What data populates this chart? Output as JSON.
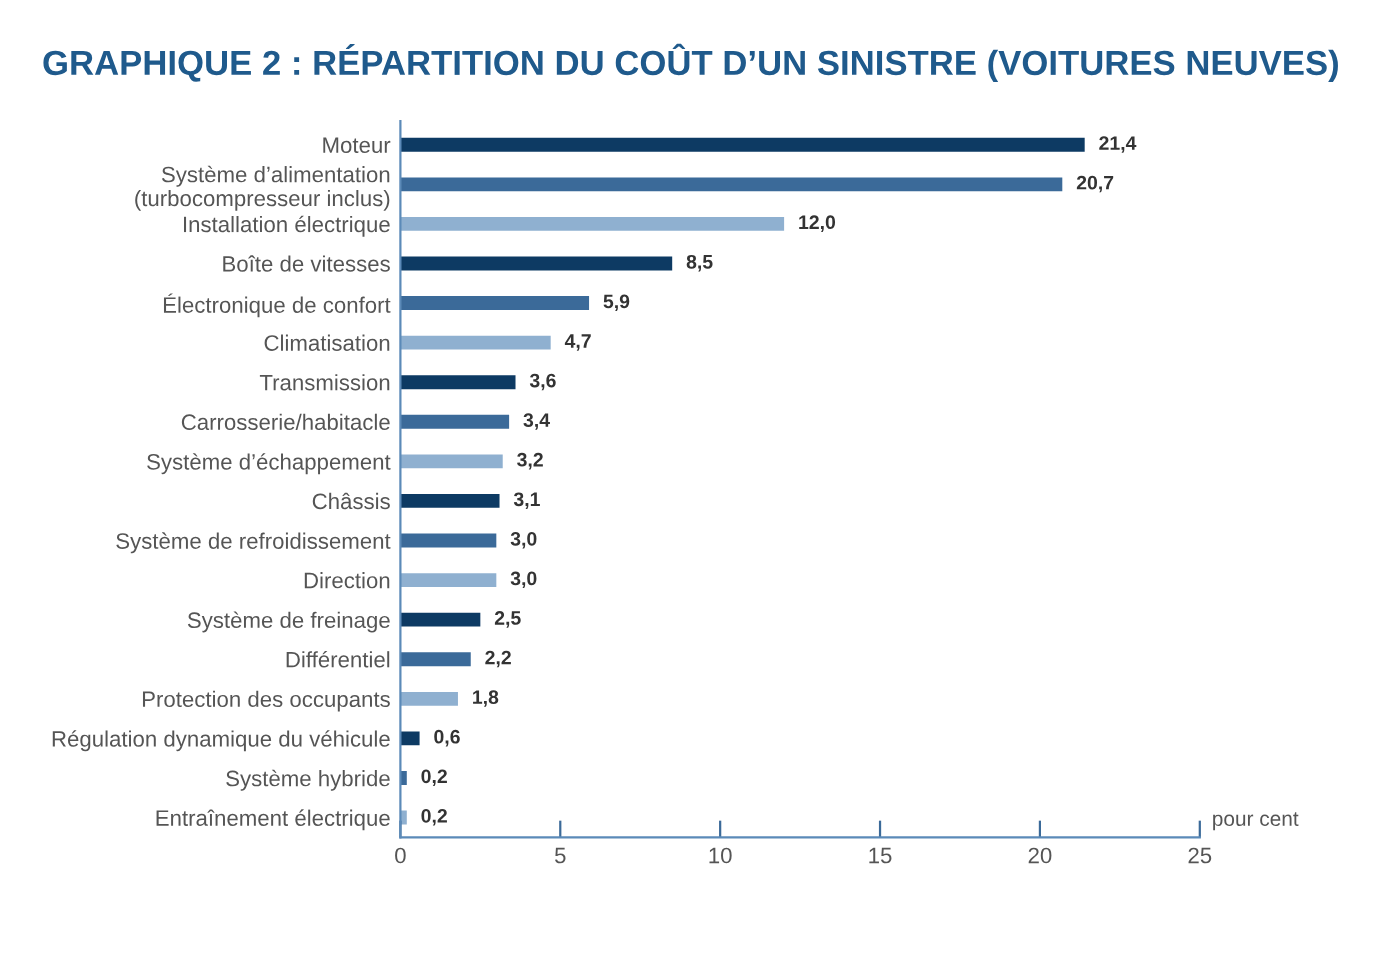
{
  "chart_data": {
    "type": "bar",
    "orientation": "horizontal",
    "title": "GRAPHIQUE 2 : RÉPARTITION DU COÛT D’UN SINISTRE (VOITURES NEUVES)",
    "xlabel": "pour cent",
    "categories": [
      "Moteur",
      "Système d’alimentation\n(turbocompresseur inclus)",
      "Installation électrique",
      "Boîte de vitesses",
      "Électronique de confort",
      "Climatisation",
      "Transmission",
      "Carrosserie/habitacle",
      "Système d’échappement",
      "Châssis",
      "Système de refroidissement",
      "Direction",
      "Système de freinage",
      "Différentiel",
      "Protection des occupants",
      "Régulation dynamique du véhicule",
      "Système hybride",
      "Entraînement électrique"
    ],
    "values": [
      21.4,
      20.7,
      12.0,
      8.5,
      5.9,
      4.7,
      3.6,
      3.4,
      3.2,
      3.1,
      3.0,
      3.0,
      2.5,
      2.2,
      1.8,
      0.6,
      0.2,
      0.2
    ],
    "value_labels": [
      "21,4",
      "20,7",
      "12,0",
      "8,5",
      "5,9",
      "4,7",
      "3,6",
      "3,4",
      "3,2",
      "3,1",
      "3,0",
      "3,0",
      "2,5",
      "2,2",
      "1,8",
      "0,6",
      "0,2",
      "0,2"
    ],
    "colors": [
      "#0d3a63",
      "#3b6a99",
      "#8fb0d0",
      "#0d3a63",
      "#3b6a99",
      "#8fb0d0",
      "#0d3a63",
      "#3b6a99",
      "#8fb0d0",
      "#0d3a63",
      "#3b6a99",
      "#8fb0d0",
      "#0d3a63",
      "#3b6a99",
      "#8fb0d0",
      "#0d3a63",
      "#3b6a99",
      "#8fb0d0"
    ],
    "xlim": [
      0,
      25
    ],
    "xticks": [
      0,
      5,
      10,
      15,
      20,
      25
    ],
    "grid": false,
    "legend": false
  }
}
